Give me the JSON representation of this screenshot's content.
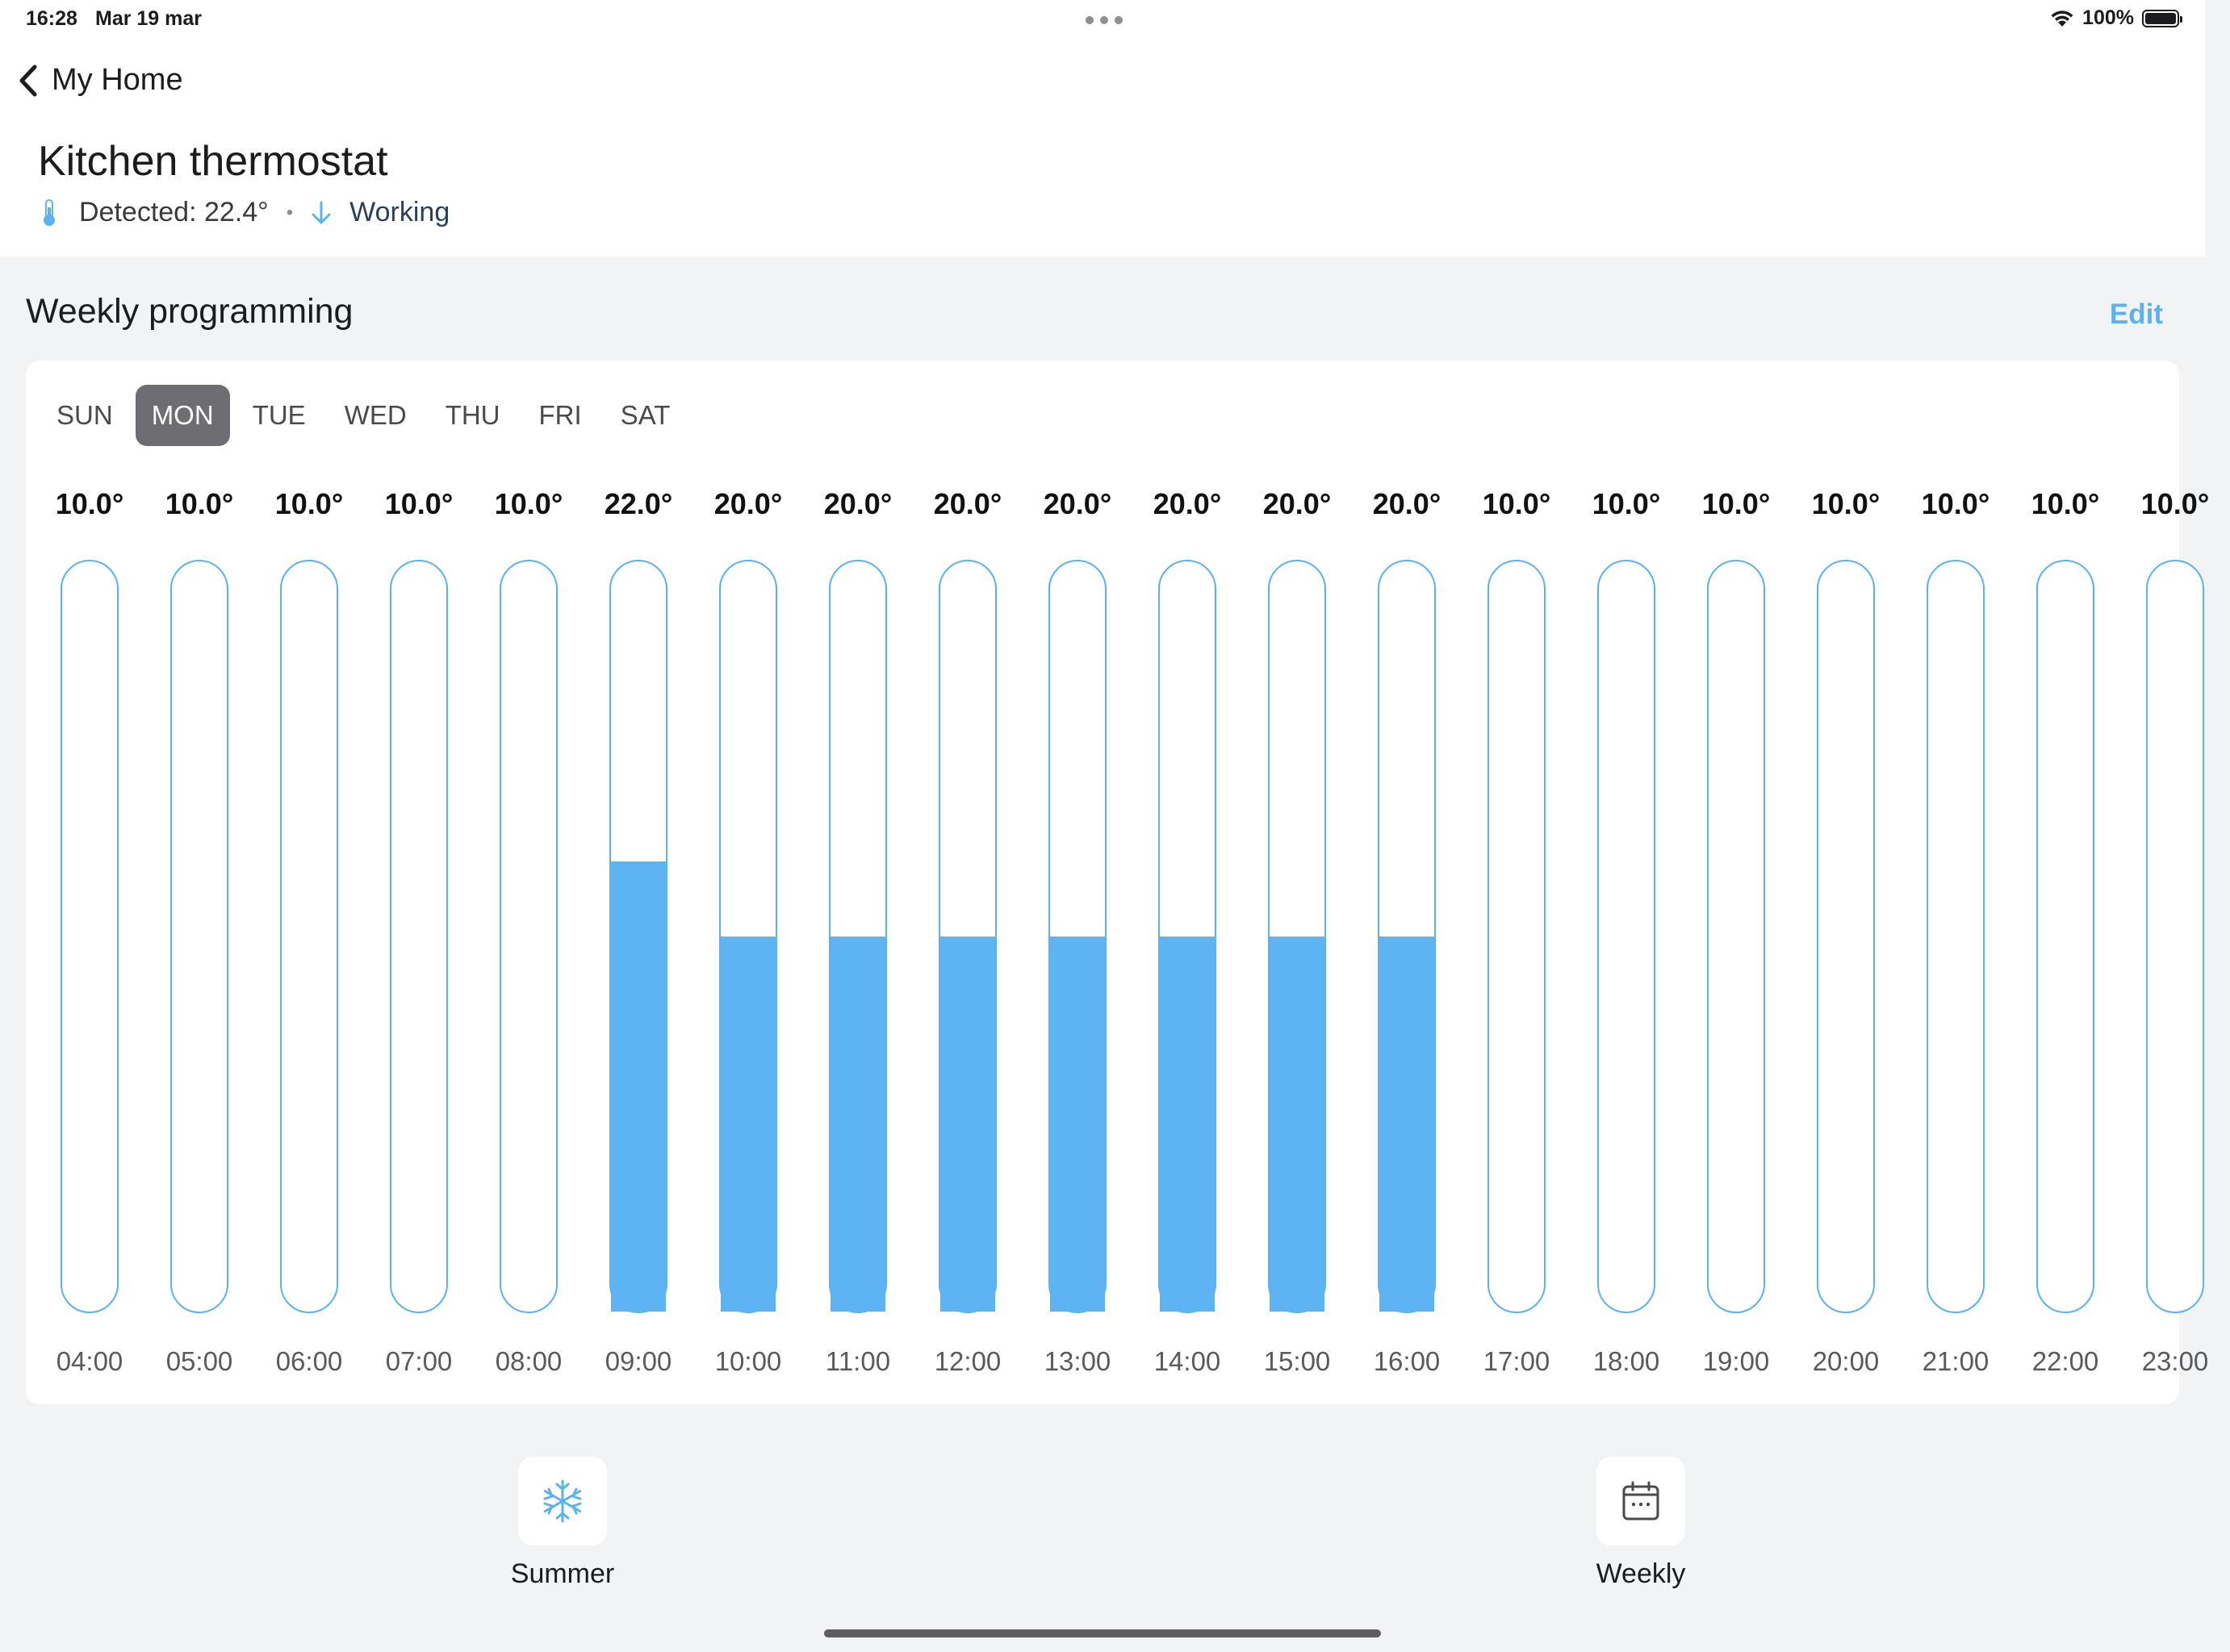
{
  "status_bar": {
    "time": "16:28",
    "date": "Mar 19 mar",
    "battery": "100%"
  },
  "nav": {
    "back_label": "My Home"
  },
  "device": {
    "title": "Kitchen thermostat",
    "detected": "Detected: 22.4°",
    "state": "Working"
  },
  "section": {
    "title": "Weekly programming",
    "edit_label": "Edit"
  },
  "days": [
    "SUN",
    "MON",
    "TUE",
    "WED",
    "THU",
    "FRI",
    "SAT"
  ],
  "selected_day": "MON",
  "schedule": {
    "slots": [
      {
        "time": "04:00",
        "temp": "10.0°",
        "value": 10.0
      },
      {
        "time": "05:00",
        "temp": "10.0°",
        "value": 10.0
      },
      {
        "time": "06:00",
        "temp": "10.0°",
        "value": 10.0
      },
      {
        "time": "07:00",
        "temp": "10.0°",
        "value": 10.0
      },
      {
        "time": "08:00",
        "temp": "10.0°",
        "value": 10.0
      },
      {
        "time": "09:00",
        "temp": "22.0°",
        "value": 22.0
      },
      {
        "time": "10:00",
        "temp": "20.0°",
        "value": 20.0
      },
      {
        "time": "11:00",
        "temp": "20.0°",
        "value": 20.0
      },
      {
        "time": "12:00",
        "temp": "20.0°",
        "value": 20.0
      },
      {
        "time": "13:00",
        "temp": "20.0°",
        "value": 20.0
      },
      {
        "time": "14:00",
        "temp": "20.0°",
        "value": 20.0
      },
      {
        "time": "15:00",
        "temp": "20.0°",
        "value": 20.0
      },
      {
        "time": "16:00",
        "temp": "20.0°",
        "value": 20.0
      },
      {
        "time": "17:00",
        "temp": "10.0°",
        "value": 10.0
      },
      {
        "time": "18:00",
        "temp": "10.0°",
        "value": 10.0
      },
      {
        "time": "19:00",
        "temp": "10.0°",
        "value": 10.0
      },
      {
        "time": "20:00",
        "temp": "10.0°",
        "value": 10.0
      },
      {
        "time": "21:00",
        "temp": "10.0°",
        "value": 10.0
      },
      {
        "time": "22:00",
        "temp": "10.0°",
        "value": 10.0
      },
      {
        "time": "23:00",
        "temp": "10.0°",
        "value": 10.0
      }
    ]
  },
  "actions": {
    "summer": {
      "label": "Summer",
      "icon": "snowflake-icon"
    },
    "weekly": {
      "label": "Weekly",
      "icon": "calendar-icon"
    }
  },
  "colors": {
    "accent": "#5ab2ee",
    "fill": "#5eb3f2",
    "active_tab": "#6e6e72",
    "background": "#f1f3f5"
  }
}
